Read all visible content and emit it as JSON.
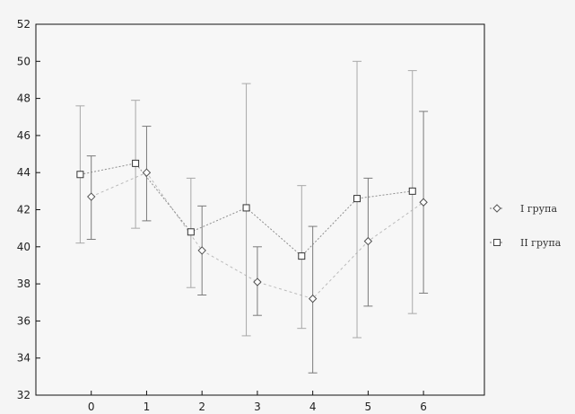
{
  "chart_data": {
    "type": "line",
    "title": "",
    "xlabel": "",
    "ylabel": "",
    "xlim": [
      -1,
      7.1
    ],
    "ylim": [
      32,
      52
    ],
    "yticks": [
      32,
      34,
      36,
      38,
      40,
      42,
      44,
      46,
      48,
      50,
      52
    ],
    "xticks": [
      0,
      1,
      2,
      3,
      4,
      5,
      6
    ],
    "grid": false,
    "legend_position": "right",
    "series": [
      {
        "name": "I група",
        "marker": "diamond",
        "color": "#7a7a7a",
        "points": [
          {
            "x": 0,
            "y": 42.7,
            "low": 40.4,
            "high": 44.9
          },
          {
            "x": 1,
            "y": 44.0,
            "low": 41.4,
            "high": 46.5
          },
          {
            "x": 2,
            "y": 39.8,
            "low": 37.4,
            "high": 42.2
          },
          {
            "x": 3,
            "y": 38.1,
            "low": 36.3,
            "high": 40.0
          },
          {
            "x": 4,
            "y": 37.2,
            "low": 33.2,
            "high": 41.1
          },
          {
            "x": 5,
            "y": 40.3,
            "low": 36.8,
            "high": 43.7
          },
          {
            "x": 6,
            "y": 42.4,
            "low": 37.5,
            "high": 47.3
          }
        ]
      },
      {
        "name": "II група",
        "marker": "square",
        "color": "#a8a8a8",
        "points": [
          {
            "x": -0.2,
            "y": 43.9,
            "low": 40.2,
            "high": 47.6
          },
          {
            "x": 0.8,
            "y": 44.5,
            "low": 41.0,
            "high": 47.9
          },
          {
            "x": 1.8,
            "y": 40.8,
            "low": 37.8,
            "high": 43.7
          },
          {
            "x": 2.8,
            "y": 42.1,
            "low": 35.2,
            "high": 48.8
          },
          {
            "x": 3.8,
            "y": 39.5,
            "low": 35.6,
            "high": 43.3
          },
          {
            "x": 4.8,
            "y": 42.6,
            "low": 35.1,
            "high": 50.0
          },
          {
            "x": 5.8,
            "y": 43.0,
            "low": 36.4,
            "high": 49.5
          }
        ]
      }
    ]
  }
}
